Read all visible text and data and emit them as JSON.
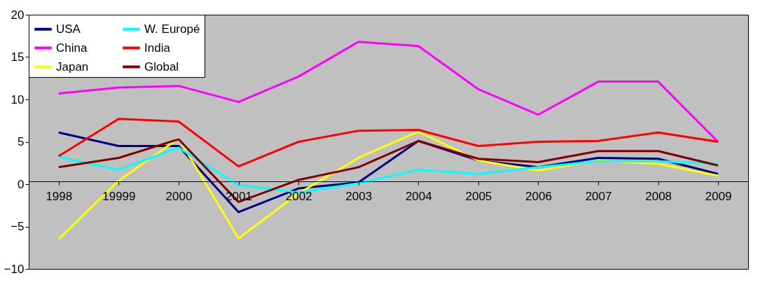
{
  "chart_data": {
    "type": "line",
    "categories": [
      "1998",
      "19999",
      "2000",
      "2001",
      "2002",
      "2003",
      "2004",
      "2005",
      "2006",
      "2007",
      "2008",
      "2009"
    ],
    "series": [
      {
        "name": "USA",
        "color": "#000080",
        "values": [
          6.1,
          4.5,
          4.5,
          -3.3,
          -0.5,
          0.2,
          5.1,
          2.8,
          2.0,
          3.1,
          3.0,
          1.2
        ]
      },
      {
        "name": "China",
        "color": "#ff00ff",
        "values": [
          10.7,
          11.4,
          11.6,
          9.7,
          12.7,
          16.8,
          16.3,
          11.2,
          8.2,
          12.1,
          12.1,
          5.0
        ]
      },
      {
        "name": "Japan",
        "color": "#ffff00",
        "values": [
          -6.5,
          0.4,
          5.4,
          -6.4,
          -1.1,
          3.1,
          6.2,
          2.8,
          1.6,
          2.8,
          2.4,
          1.0
        ]
      },
      {
        "name": "W. Europé",
        "color": "#00ffff",
        "values": [
          3.2,
          1.7,
          4.3,
          -0.1,
          -1.0,
          0.1,
          1.7,
          1.2,
          2.0,
          2.7,
          2.7,
          2.4
        ]
      },
      {
        "name": "India",
        "color": "#ff0000",
        "values": [
          3.3,
          7.7,
          7.4,
          2.1,
          5.0,
          6.3,
          6.4,
          4.5,
          5.0,
          5.1,
          6.1,
          5.0
        ]
      },
      {
        "name": "Global",
        "color": "#800000",
        "values": [
          2.0,
          3.1,
          5.3,
          -2.1,
          0.5,
          2.0,
          5.1,
          3.0,
          2.6,
          3.9,
          3.9,
          2.2
        ]
      }
    ],
    "ylim": [
      -10,
      20
    ],
    "yticks": [
      -10,
      -5,
      0,
      5,
      10,
      15,
      20
    ],
    "grid": false,
    "legend": "top left",
    "marker": "none",
    "line_style": "solid"
  }
}
